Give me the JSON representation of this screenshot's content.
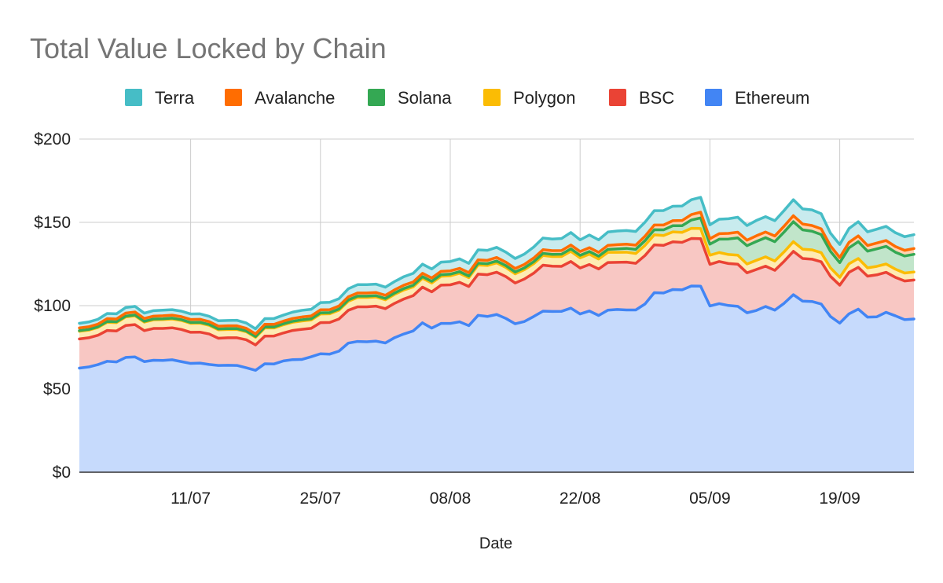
{
  "chart_data": {
    "type": "area",
    "stacked": true,
    "title": "Total Value Locked by Chain",
    "xlabel": "Date",
    "ylabel": "",
    "ylim": [
      0,
      200
    ],
    "yticks": [
      "$0",
      "$50",
      "$100",
      "$150",
      "$200"
    ],
    "ytick_values": [
      0,
      50,
      100,
      150,
      200
    ],
    "xticks": [
      {
        "label": "11/07",
        "index": 12
      },
      {
        "label": "25/07",
        "index": 26
      },
      {
        "label": "08/08",
        "index": 40
      },
      {
        "label": "22/08",
        "index": 54
      },
      {
        "label": "05/09",
        "index": 68
      },
      {
        "label": "19/09",
        "index": 82
      }
    ],
    "grid": true,
    "legend_position": "top",
    "x_count": 91,
    "series": [
      {
        "name": "Ethereum",
        "color": "#4285f4",
        "fill": "#c6dafc",
        "values": [
          62.5,
          63.2,
          64.6,
          66.6,
          66.2,
          68.9,
          69.2,
          66.4,
          67.2,
          67.1,
          67.5,
          66.4,
          65.3,
          65.5,
          64.7,
          64.1,
          64.2,
          64.1,
          62.7,
          61.2,
          65.1,
          65.0,
          66.8,
          67.6,
          67.7,
          69.3,
          71.1,
          70.9,
          72.7,
          77.5,
          78.5,
          78.3,
          78.7,
          77.6,
          80.8,
          83.0,
          84.8,
          89.7,
          86.5,
          89.3,
          89.3,
          90.3,
          88.0,
          94.2,
          93.5,
          94.7,
          92.3,
          89.1,
          90.5,
          93.5,
          96.7,
          96.5,
          96.6,
          98.5,
          95.0,
          96.8,
          94.1,
          97.3,
          97.7,
          97.4,
          97.4,
          101.0,
          107.8,
          107.6,
          109.7,
          109.5,
          111.8,
          111.7,
          99.8,
          101.2,
          100.1,
          99.6,
          95.7,
          97.1,
          99.5,
          97.3,
          101.4,
          106.6,
          102.7,
          102.5,
          101.0,
          93.5,
          89.5,
          95.1,
          97.9,
          93.1,
          93.3,
          96.0,
          93.9,
          91.6,
          92.0,
          94.0
        ]
      },
      {
        "name": "BSC",
        "color": "#ea4335",
        "fill": "#f8c7c3",
        "values": [
          17.5,
          17.5,
          17.6,
          18.5,
          18.6,
          19.2,
          19.4,
          18.6,
          19.1,
          19.2,
          19.2,
          19.3,
          18.7,
          18.6,
          18.3,
          16.3,
          16.5,
          16.6,
          16.8,
          15.2,
          16.6,
          16.8,
          16.8,
          17.5,
          18.1,
          17.1,
          18.7,
          19.0,
          19.3,
          19.7,
          20.8,
          21.0,
          21.0,
          20.6,
          20.6,
          21.0,
          21.2,
          21.4,
          21.8,
          23.0,
          23.2,
          23.7,
          23.5,
          24.7,
          25.1,
          25.4,
          25.1,
          24.5,
          25.5,
          26.0,
          27.6,
          27.2,
          27.0,
          28.0,
          27.6,
          27.9,
          27.9,
          28.6,
          28.3,
          28.7,
          28.0,
          29.1,
          28.7,
          28.6,
          28.6,
          28.5,
          28.5,
          28.5,
          25.0,
          25.3,
          25.2,
          25.3,
          24.0,
          24.6,
          24.2,
          23.9,
          25.2,
          26.0,
          25.6,
          25.4,
          25.3,
          24.1,
          22.8,
          24.9,
          25.1,
          24.6,
          25.2,
          24.0,
          23.1,
          23.2,
          23.4,
          24.0
        ]
      },
      {
        "name": "Polygon",
        "color": "#fbbc04",
        "fill": "#feebb3",
        "values": [
          4.6,
          4.6,
          4.7,
          4.9,
          5.0,
          5.1,
          5.3,
          5.1,
          5.2,
          5.3,
          5.3,
          5.4,
          5.4,
          5.4,
          5.2,
          5.1,
          5.0,
          5.0,
          4.8,
          4.6,
          4.9,
          4.8,
          4.9,
          4.9,
          5.0,
          5.0,
          5.2,
          5.2,
          5.3,
          5.4,
          5.6,
          5.6,
          5.5,
          5.3,
          5.4,
          5.4,
          5.3,
          5.3,
          5.3,
          5.3,
          5.4,
          5.4,
          5.3,
          5.5,
          5.5,
          5.6,
          5.5,
          5.5,
          5.6,
          5.7,
          5.8,
          5.8,
          5.9,
          6.1,
          6.1,
          6.2,
          6.0,
          6.1,
          6.0,
          6.0,
          5.9,
          6.1,
          6.0,
          5.9,
          6.0,
          6.0,
          6.1,
          6.1,
          5.5,
          5.4,
          5.4,
          5.4,
          5.3,
          5.5,
          5.6,
          5.6,
          5.7,
          5.8,
          5.6,
          5.6,
          5.5,
          5.1,
          4.7,
          5.1,
          5.3,
          5.0,
          5.1,
          5.0,
          4.9,
          4.8,
          4.8,
          4.8
        ]
      },
      {
        "name": "Solana",
        "color": "#34a853",
        "fill": "#c1e5ca",
        "values": [
          0.4,
          0.4,
          0.4,
          0.5,
          0.5,
          0.5,
          0.5,
          0.5,
          0.5,
          0.5,
          0.5,
          0.5,
          0.5,
          0.5,
          0.5,
          0.5,
          0.5,
          0.5,
          0.5,
          0.5,
          0.6,
          0.6,
          0.6,
          0.6,
          0.7,
          0.7,
          0.7,
          0.7,
          0.7,
          0.8,
          0.8,
          0.8,
          0.8,
          0.8,
          0.8,
          0.9,
          0.9,
          1.0,
          1.0,
          1.0,
          1.0,
          1.0,
          1.0,
          1.1,
          1.1,
          1.1,
          1.1,
          1.1,
          1.1,
          1.2,
          1.3,
          1.3,
          1.4,
          1.5,
          1.5,
          1.6,
          1.7,
          1.8,
          2.1,
          2.3,
          2.5,
          2.8,
          3.1,
          3.4,
          3.7,
          4.0,
          5.0,
          6.4,
          6.6,
          8.0,
          9.3,
          10.4,
          11.0,
          11.3,
          11.5,
          11.6,
          11.9,
          12.0,
          11.6,
          11.2,
          10.9,
          9.9,
          8.8,
          9.6,
          10.1,
          10.0,
          10.5,
          10.6,
          10.2,
          10.2,
          10.6,
          10.9
        ]
      },
      {
        "name": "Avalanche",
        "color": "#ff6d01",
        "fill": "#ffd3b3",
        "values": [
          1.6,
          1.6,
          1.6,
          1.7,
          1.7,
          1.8,
          1.8,
          1.7,
          1.7,
          1.8,
          1.8,
          1.8,
          1.8,
          1.8,
          1.7,
          1.7,
          1.7,
          1.7,
          1.6,
          1.5,
          1.6,
          1.6,
          1.6,
          1.7,
          1.7,
          1.7,
          1.8,
          1.8,
          1.8,
          1.9,
          1.9,
          1.9,
          1.9,
          1.9,
          1.9,
          2.0,
          2.0,
          2.0,
          2.0,
          2.0,
          2.0,
          2.0,
          2.0,
          2.0,
          2.0,
          2.1,
          2.1,
          2.1,
          2.1,
          2.2,
          2.2,
          2.2,
          2.2,
          2.3,
          2.3,
          2.3,
          2.3,
          2.4,
          2.5,
          2.5,
          2.5,
          2.7,
          2.8,
          2.9,
          3.0,
          3.1,
          3.3,
          3.4,
          3.3,
          3.3,
          3.4,
          3.4,
          3.3,
          3.4,
          3.4,
          3.4,
          3.5,
          3.6,
          3.5,
          3.4,
          3.4,
          3.3,
          3.1,
          3.3,
          3.5,
          3.4,
          3.5,
          3.5,
          3.4,
          3.4,
          3.5,
          3.6
        ]
      },
      {
        "name": "Terra",
        "color": "#46bdc6",
        "fill": "#c8ebee",
        "values": [
          2.8,
          2.9,
          2.9,
          3.1,
          3.1,
          3.4,
          3.4,
          3.2,
          3.3,
          3.4,
          3.3,
          3.3,
          3.3,
          3.3,
          3.2,
          3.2,
          3.2,
          3.3,
          3.2,
          3.1,
          3.4,
          3.5,
          3.6,
          3.8,
          4.0,
          4.0,
          4.3,
          4.4,
          4.4,
          4.8,
          5.0,
          5.0,
          5.0,
          4.9,
          5.0,
          5.1,
          5.2,
          5.5,
          5.4,
          5.5,
          5.6,
          5.7,
          5.6,
          6.0,
          6.0,
          6.1,
          6.0,
          6.0,
          6.2,
          6.6,
          7.0,
          7.0,
          7.2,
          7.5,
          7.0,
          7.6,
          7.5,
          8.0,
          8.2,
          8.2,
          8.2,
          8.4,
          8.6,
          8.7,
          8.7,
          8.7,
          8.9,
          8.9,
          8.3,
          8.7,
          8.8,
          9.0,
          8.8,
          9.2,
          9.2,
          9.2,
          9.4,
          9.6,
          9.1,
          9.4,
          9.1,
          7.6,
          7.8,
          8.3,
          8.5,
          8.2,
          8.3,
          8.5,
          8.3,
          8.2,
          8.3,
          8.5
        ]
      }
    ]
  }
}
